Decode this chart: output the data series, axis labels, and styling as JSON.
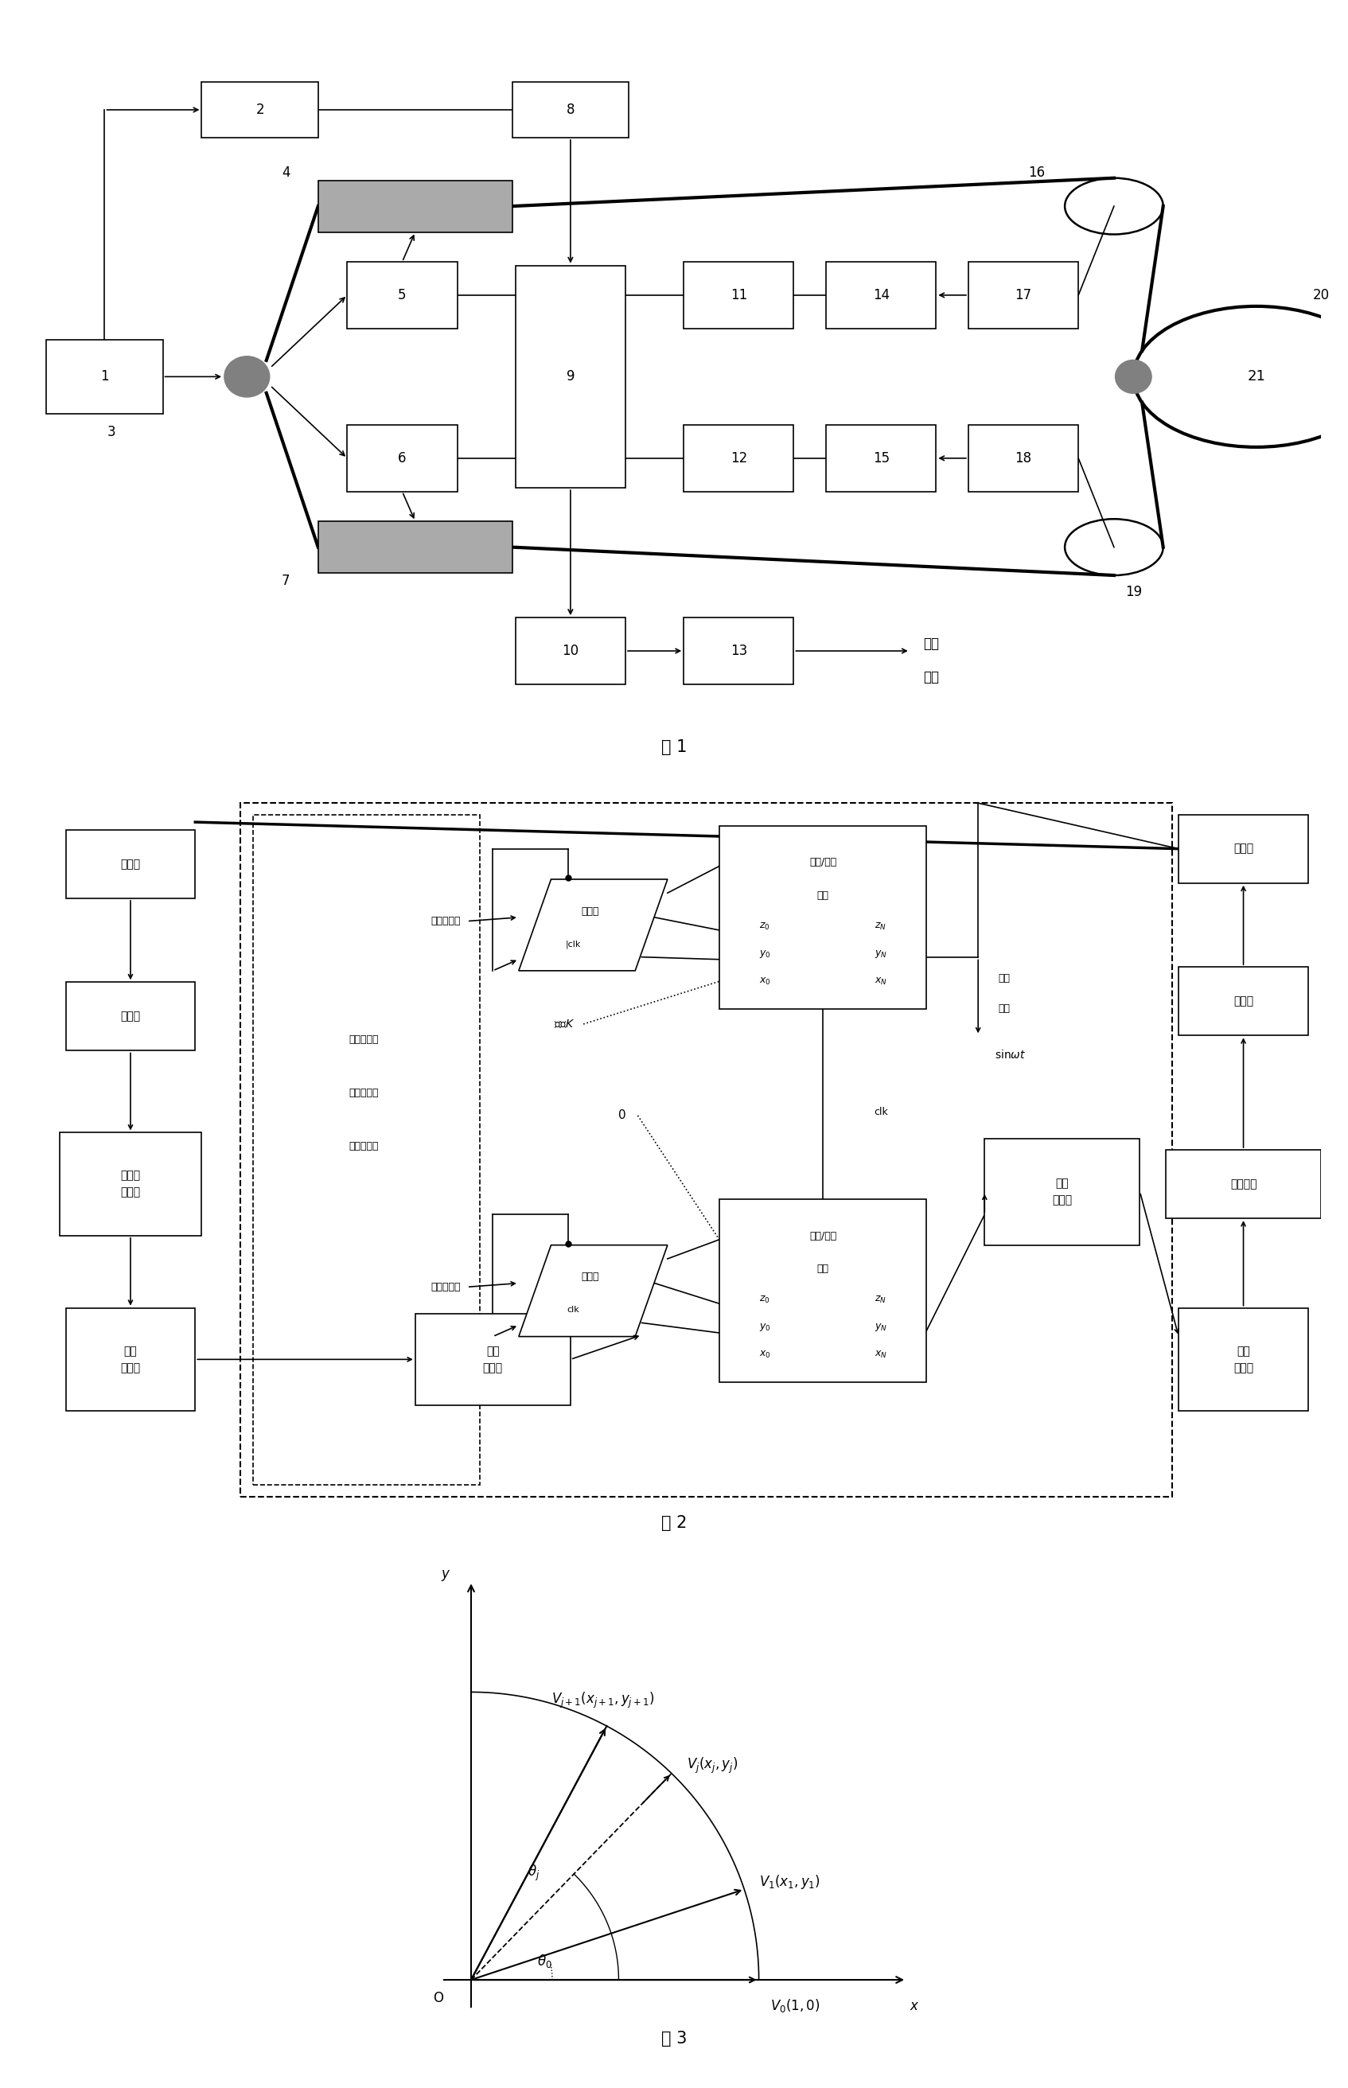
{
  "bg": "#ffffff",
  "fig1_title": "图 1",
  "fig2_title": "图 2",
  "fig3_title": "图 3"
}
